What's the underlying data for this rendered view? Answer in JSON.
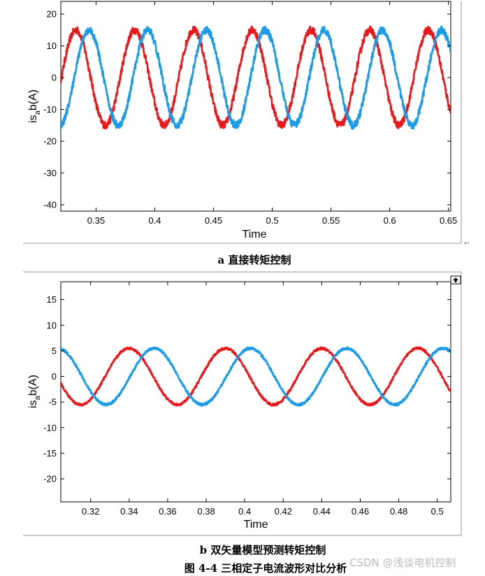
{
  "chart_data": [
    {
      "type": "line",
      "xlabel": "Time",
      "ylabel": {
        "main": "is",
        "sub": "a",
        "rest": "b(A)"
      },
      "xlim": [
        0.32,
        0.652
      ],
      "ylim": [
        -42,
        24
      ],
      "xticks": [
        "0.35",
        "0.4",
        "0.45",
        "0.5",
        "0.55",
        "0.6",
        "0.65"
      ],
      "xtick_values": [
        0.35,
        0.4,
        0.45,
        0.5,
        0.55,
        0.6,
        0.65
      ],
      "yticks": [
        "20",
        "10",
        "0",
        "-10",
        "-20",
        "-30",
        "-40"
      ],
      "ytick_values": [
        20,
        10,
        0,
        -10,
        -20,
        -30,
        -40
      ],
      "grid": false,
      "series": [
        {
          "color": "#e8191c",
          "amplitude": 15,
          "period": 0.05,
          "phase_x0": 0.3205,
          "noise": 1.2,
          "x_start": 0.32,
          "x_end": 0.652
        },
        {
          "color": "#1c9be8",
          "amplitude": 15,
          "period": 0.05,
          "phase_x0": 0.3315,
          "noise": 1.2,
          "x_start": 0.32,
          "x_end": 0.652
        }
      ],
      "caption": "a  直接转矩控制"
    },
    {
      "type": "line",
      "xlabel": "Time",
      "ylabel": {
        "main": "is",
        "sub": "a",
        "rest": "b(A)"
      },
      "xlim": [
        0.3045,
        0.507
      ],
      "ylim": [
        -24.5,
        18.5
      ],
      "xticks": [
        "0.32",
        "0.34",
        "0.36",
        "0.38",
        "0.4",
        "0.42",
        "0.44",
        "0.46",
        "0.48",
        "0.5"
      ],
      "xtick_values": [
        0.32,
        0.34,
        0.36,
        0.38,
        0.4,
        0.42,
        0.44,
        0.46,
        0.48,
        0.5
      ],
      "yticks": [
        "15",
        "10",
        "5",
        "0",
        "-5",
        "-10",
        "-15",
        "-20"
      ],
      "ytick_values": [
        15,
        10,
        5,
        0,
        -5,
        -10,
        -15,
        -20
      ],
      "grid": false,
      "series": [
        {
          "color": "#e8191c",
          "amplitude": 5.5,
          "period": 0.05,
          "phase_x0": 0.3275,
          "noise": 0.25,
          "x_start": 0.3045,
          "x_end": 0.507
        },
        {
          "color": "#1c9be8",
          "amplitude": 5.5,
          "period": 0.05,
          "phase_x0": 0.3405,
          "noise": 0.25,
          "x_start": 0.3045,
          "x_end": 0.507
        }
      ],
      "caption": "b  双矢量模型预测转矩控制"
    }
  ],
  "figure_caption": "图 4-4  三相定子电流波形对比分析",
  "watermark": "CSDN @浅谈电机控制",
  "return_mark": "↵",
  "colors": {
    "red": "#e8191c",
    "blue": "#1c9be8"
  }
}
